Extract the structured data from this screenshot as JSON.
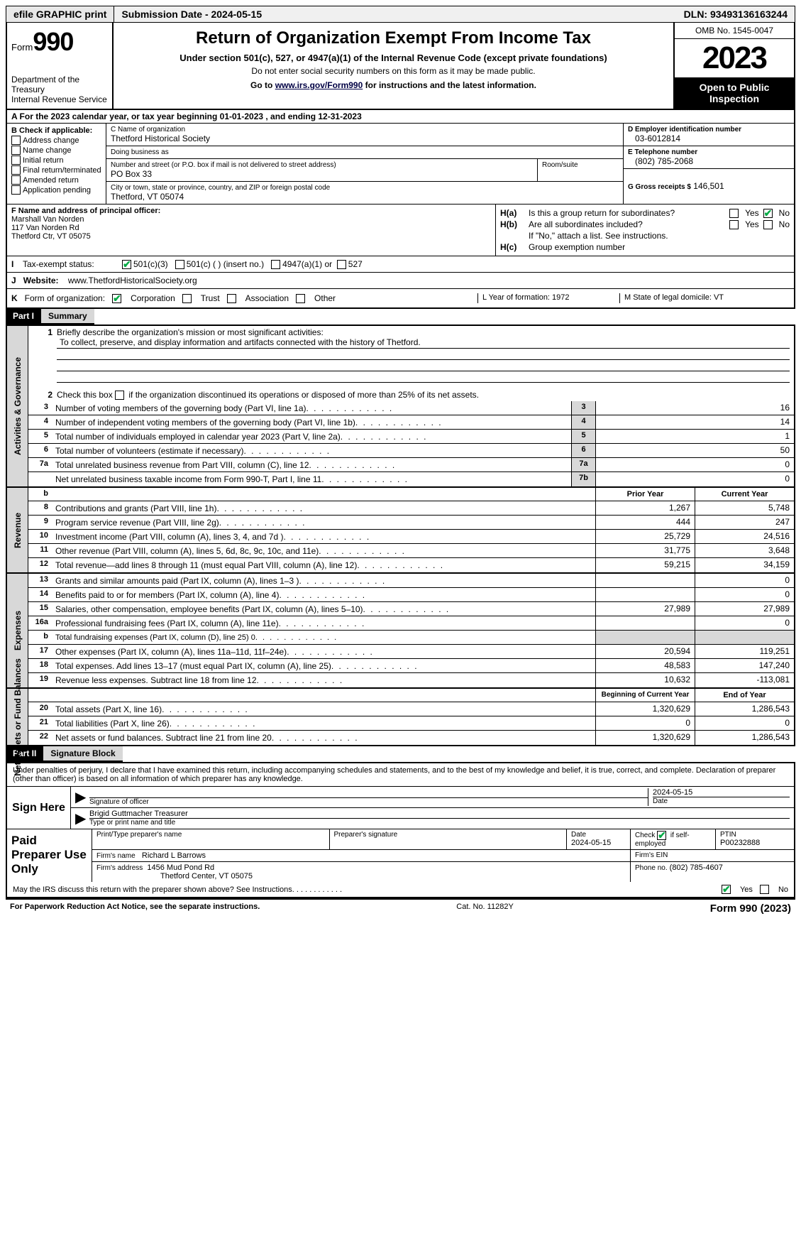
{
  "topbar": {
    "efile": "efile GRAPHIC print",
    "submission": "Submission Date - 2024-05-15",
    "dln": "DLN: 93493136163244"
  },
  "header": {
    "form_word": "Form",
    "form_num": "990",
    "dept": "Department of the Treasury",
    "irs": "Internal Revenue Service",
    "title": "Return of Organization Exempt From Income Tax",
    "sub1": "Under section 501(c), 527, or 4947(a)(1) of the Internal Revenue Code (except private foundations)",
    "sub2": "Do not enter social security numbers on this form as it may be made public.",
    "sub3_pre": "Go to ",
    "sub3_link": "www.irs.gov/Form990",
    "sub3_post": " for instructions and the latest information.",
    "omb": "OMB No. 1545-0047",
    "year": "2023",
    "open": "Open to Public Inspection"
  },
  "rowA": "A For the 2023 calendar year, or tax year beginning 01-01-2023    , and ending 12-31-2023",
  "colB": {
    "hdr": "B Check if applicable:",
    "items": [
      "Address change",
      "Name change",
      "Initial return",
      "Final return/terminated",
      "Amended return",
      "Application pending"
    ]
  },
  "colC": {
    "name_lbl": "C Name of organization",
    "name": "Thetford Historical Society",
    "dba_lbl": "Doing business as",
    "dba": "",
    "addr_lbl": "Number and street (or P.O. box if mail is not delivered to street address)",
    "addr": "PO Box 33",
    "room_lbl": "Room/suite",
    "city_lbl": "City or town, state or province, country, and ZIP or foreign postal code",
    "city": "Thetford, VT  05074"
  },
  "colDE": {
    "d_lbl": "D Employer identification number",
    "d_val": "03-6012814",
    "e_lbl": "E Telephone number",
    "e_val": "(802) 785-2068",
    "g_lbl": "G Gross receipts $",
    "g_val": "146,501"
  },
  "rowF": {
    "lbl": "F  Name and address of principal officer:",
    "name": "Marshall Van Norden",
    "addr1": "117 Van Norden Rd",
    "addr2": "Thetford Ctr, VT  05075"
  },
  "rowH": {
    "ha_lbl": "H(a)",
    "ha_txt": "Is this a group return for subordinates?",
    "hb_lbl": "H(b)",
    "hb_txt": "Are all subordinates included?",
    "hb_note": "If \"No,\" attach a list. See instructions.",
    "hc_lbl": "H(c)",
    "hc_txt": "Group exemption number",
    "yes": "Yes",
    "no": "No"
  },
  "rowI": {
    "ltr": "I",
    "lbl": "Tax-exempt status:",
    "opt1": "501(c)(3)",
    "opt2": "501(c) (  ) (insert no.)",
    "opt3": "4947(a)(1) or",
    "opt4": "527"
  },
  "rowJ": {
    "ltr": "J",
    "lbl": "Website:",
    "val": "www.ThetfordHistoricalSociety.org"
  },
  "rowK": {
    "ltr": "K",
    "lbl": "Form of organization:",
    "opts": [
      "Corporation",
      "Trust",
      "Association",
      "Other"
    ],
    "l_lbl": "L Year of formation: 1972",
    "m_lbl": "M State of legal domicile: VT"
  },
  "part1": {
    "part": "Part I",
    "title": "Summary",
    "tab_gov": "Activities & Governance",
    "tab_rev": "Revenue",
    "tab_exp": "Expenses",
    "tab_net": "Net Assets or Fund Balances",
    "line1_lbl": "Briefly describe the organization's mission or most significant activities:",
    "line1_val": "To collect, preserve, and display information and artifacts connected with the history of Thetford.",
    "line2": "Check this box      if the organization discontinued its operations or disposed of more than 25% of its net assets.",
    "lines_gov": [
      {
        "n": "3",
        "d": "Number of voting members of the governing body (Part VI, line 1a)",
        "b": "3",
        "v": "16"
      },
      {
        "n": "4",
        "d": "Number of independent voting members of the governing body (Part VI, line 1b)",
        "b": "4",
        "v": "14"
      },
      {
        "n": "5",
        "d": "Total number of individuals employed in calendar year 2023 (Part V, line 2a)",
        "b": "5",
        "v": "1"
      },
      {
        "n": "6",
        "d": "Total number of volunteers (estimate if necessary)",
        "b": "6",
        "v": "50"
      },
      {
        "n": "7a",
        "d": "Total unrelated business revenue from Part VIII, column (C), line 12",
        "b": "7a",
        "v": "0"
      },
      {
        "n": "",
        "d": "Net unrelated business taxable income from Form 990-T, Part I, line 11",
        "b": "7b",
        "v": "0"
      }
    ],
    "col_prior": "Prior Year",
    "col_curr": "Current Year",
    "lines_rev": [
      {
        "n": "8",
        "d": "Contributions and grants (Part VIII, line 1h)",
        "p": "1,267",
        "c": "5,748"
      },
      {
        "n": "9",
        "d": "Program service revenue (Part VIII, line 2g)",
        "p": "444",
        "c": "247"
      },
      {
        "n": "10",
        "d": "Investment income (Part VIII, column (A), lines 3, 4, and 7d )",
        "p": "25,729",
        "c": "24,516"
      },
      {
        "n": "11",
        "d": "Other revenue (Part VIII, column (A), lines 5, 6d, 8c, 9c, 10c, and 11e)",
        "p": "31,775",
        "c": "3,648"
      },
      {
        "n": "12",
        "d": "Total revenue—add lines 8 through 11 (must equal Part VIII, column (A), line 12)",
        "p": "59,215",
        "c": "34,159"
      }
    ],
    "lines_exp": [
      {
        "n": "13",
        "d": "Grants and similar amounts paid (Part IX, column (A), lines 1–3 )",
        "p": "",
        "c": "0"
      },
      {
        "n": "14",
        "d": "Benefits paid to or for members (Part IX, column (A), line 4)",
        "p": "",
        "c": "0"
      },
      {
        "n": "15",
        "d": "Salaries, other compensation, employee benefits (Part IX, column (A), lines 5–10)",
        "p": "27,989",
        "c": "27,989"
      },
      {
        "n": "16a",
        "d": "Professional fundraising fees (Part IX, column (A), line 11e)",
        "p": "",
        "c": "0"
      },
      {
        "n": "b",
        "d": "Total fundraising expenses (Part IX, column (D), line 25) 0",
        "p": "shaded",
        "c": "shaded"
      },
      {
        "n": "17",
        "d": "Other expenses (Part IX, column (A), lines 11a–11d, 11f–24e)",
        "p": "20,594",
        "c": "119,251"
      },
      {
        "n": "18",
        "d": "Total expenses. Add lines 13–17 (must equal Part IX, column (A), line 25)",
        "p": "48,583",
        "c": "147,240"
      },
      {
        "n": "19",
        "d": "Revenue less expenses. Subtract line 18 from line 12",
        "p": "10,632",
        "c": "-113,081"
      }
    ],
    "col_begin": "Beginning of Current Year",
    "col_end": "End of Year",
    "lines_net": [
      {
        "n": "20",
        "d": "Total assets (Part X, line 16)",
        "p": "1,320,629",
        "c": "1,286,543"
      },
      {
        "n": "21",
        "d": "Total liabilities (Part X, line 26)",
        "p": "0",
        "c": "0"
      },
      {
        "n": "22",
        "d": "Net assets or fund balances. Subtract line 21 from line 20",
        "p": "1,320,629",
        "c": "1,286,543"
      }
    ]
  },
  "part2": {
    "part": "Part II",
    "title": "Signature Block",
    "declaration": "Under penalties of perjury, I declare that I have examined this return, including accompanying schedules and statements, and to the best of my knowledge and belief, it is true, correct, and complete. Declaration of preparer (other than officer) is based on all information of which preparer has any knowledge.",
    "sign_here": "Sign Here",
    "sig_officer_lbl": "Signature of officer",
    "sig_name": "Brigid Guttmacher Treasurer",
    "sig_type_lbl": "Type or print name and title",
    "sig_date_lbl": "Date",
    "sig_date": "2024-05-15",
    "paid": "Paid Preparer Use Only",
    "prep_name_lbl": "Print/Type preparer's name",
    "prep_sig_lbl": "Preparer's signature",
    "prep_date_lbl": "Date",
    "prep_date": "2024-05-15",
    "prep_check_lbl": "Check        if self-employed",
    "ptin_lbl": "PTIN",
    "ptin": "P00232888",
    "firm_name_lbl": "Firm's name",
    "firm_name": "Richard L Barrows",
    "firm_ein_lbl": "Firm's EIN",
    "firm_addr_lbl": "Firm's address",
    "firm_addr1": "1456 Mud Pond Rd",
    "firm_addr2": "Thetford Center, VT  05075",
    "phone_lbl": "Phone no.",
    "phone": "(802) 785-4607",
    "discuss": "May the IRS discuss this return with the preparer shown above? See Instructions.",
    "yes": "Yes",
    "no": "No"
  },
  "footer": {
    "left": "For Paperwork Reduction Act Notice, see the separate instructions.",
    "cat": "Cat. No. 11282Y",
    "right_pre": "Form ",
    "right_num": "990",
    "right_post": " (2023)"
  }
}
